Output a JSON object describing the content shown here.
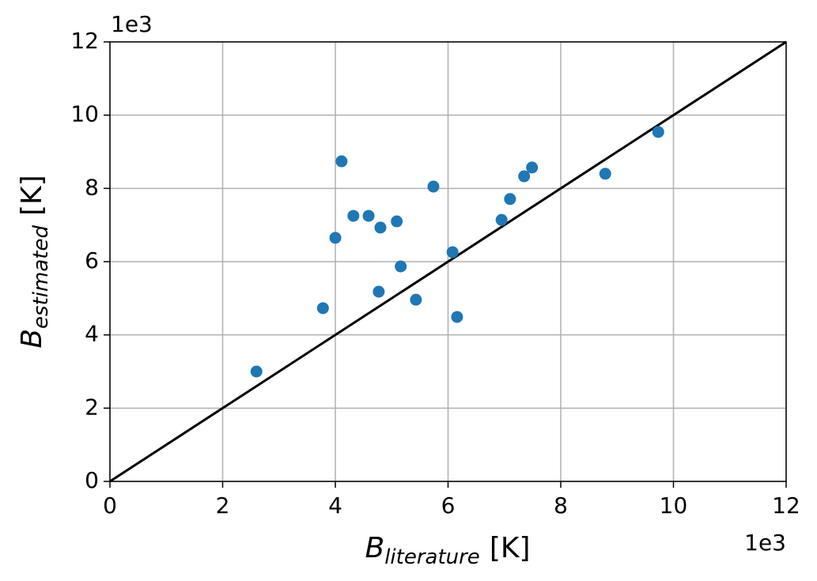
{
  "chart_data": {
    "type": "scatter",
    "x_label": {
      "symbol": "B",
      "sub": "literature",
      "unit": "[K]"
    },
    "y_label": {
      "symbol": "B",
      "sub": "estimated",
      "unit": "[K]"
    },
    "x_offset": "1e3",
    "y_offset": "1e3",
    "x": [
      2.6,
      3.78,
      4.0,
      4.11,
      4.32,
      4.59,
      4.8,
      4.77,
      5.09,
      5.16,
      5.43,
      5.74,
      6.08,
      6.16,
      6.95,
      7.1,
      7.35,
      7.49,
      8.79,
      9.73
    ],
    "y": [
      3.0,
      4.73,
      6.65,
      8.74,
      7.25,
      7.25,
      6.93,
      5.18,
      7.1,
      5.87,
      4.96,
      8.05,
      6.26,
      4.49,
      7.14,
      7.71,
      8.33,
      8.57,
      8.4,
      9.54
    ],
    "color": "#1f77b4",
    "identity_line": true,
    "identity_color": "#000000",
    "xlim": [
      0,
      12
    ],
    "ylim": [
      0,
      12
    ],
    "xticks": [
      0,
      2,
      4,
      6,
      8,
      10,
      12
    ],
    "yticks": [
      0,
      2,
      4,
      6,
      8,
      10,
      12
    ],
    "grid": true
  }
}
